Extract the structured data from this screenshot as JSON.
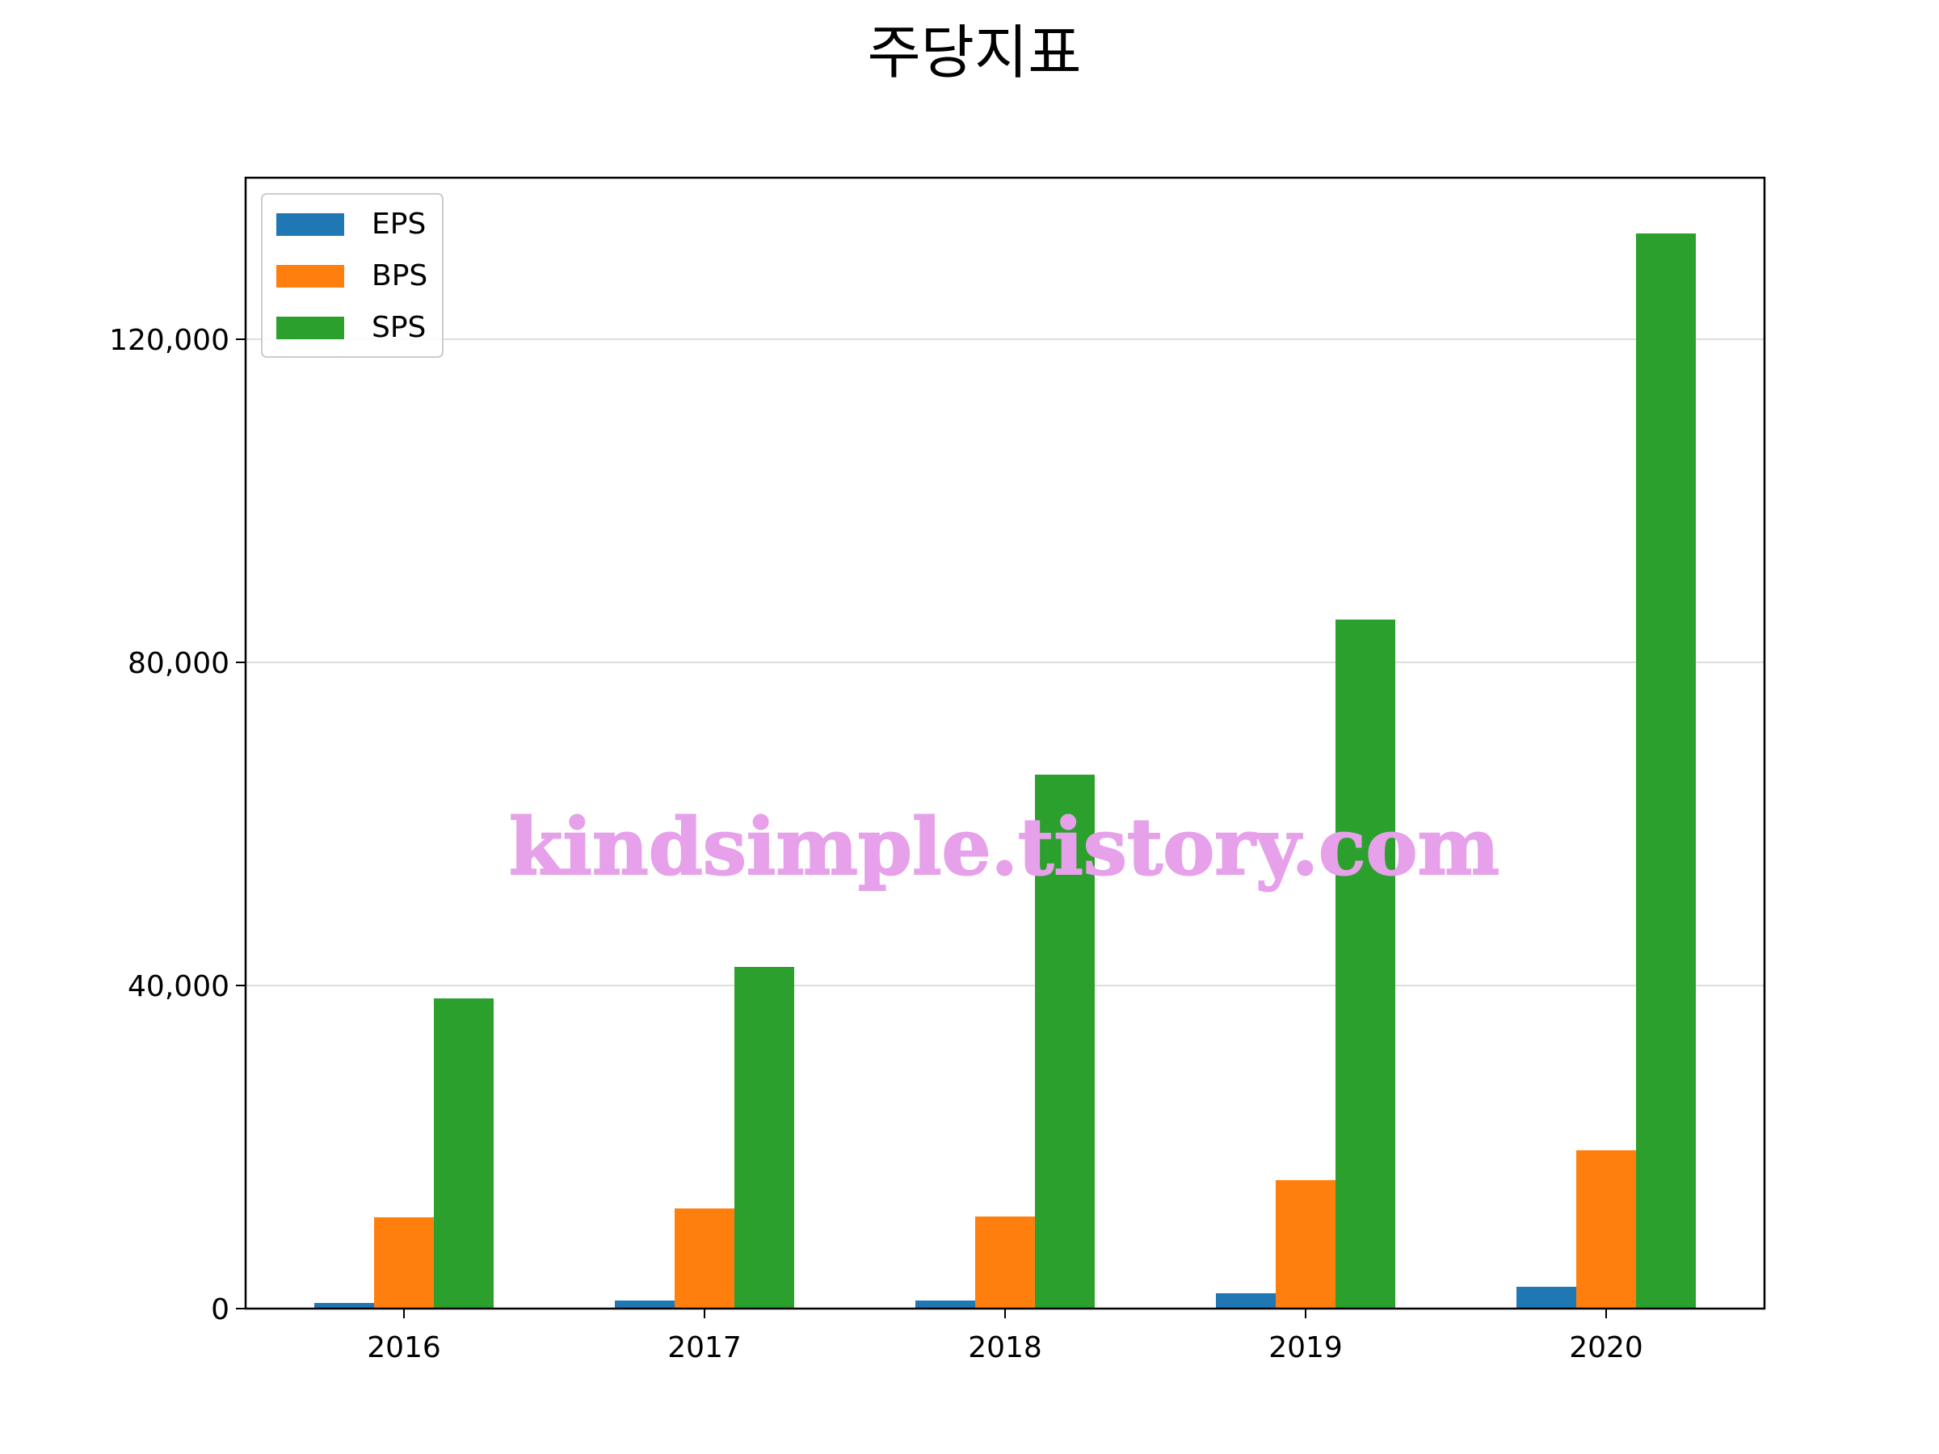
{
  "chart_data": {
    "type": "bar",
    "title": "주당지표",
    "xlabel": "",
    "ylabel": "",
    "categories": [
      "2016",
      "2017",
      "2018",
      "2019",
      "2020"
    ],
    "series": [
      {
        "name": "EPS",
        "color": "#1f77b4",
        "values": [
          700,
          1000,
          1000,
          1900,
          2700
        ]
      },
      {
        "name": "BPS",
        "color": "#ff7f0e",
        "values": [
          11300,
          12400,
          11400,
          15900,
          19600
        ]
      },
      {
        "name": "SPS",
        "color": "#2ca02c",
        "values": [
          38400,
          42300,
          66100,
          85300,
          133100
        ]
      }
    ],
    "ylim": [
      0,
      140000
    ],
    "yticks": [
      0,
      40000,
      80000,
      120000
    ],
    "ytick_labels": [
      "0",
      "40,000",
      "80,000",
      "120,000"
    ],
    "grid": "horizontal",
    "legend_position": "top-left",
    "watermark": "kindsimple.tistory.com"
  }
}
